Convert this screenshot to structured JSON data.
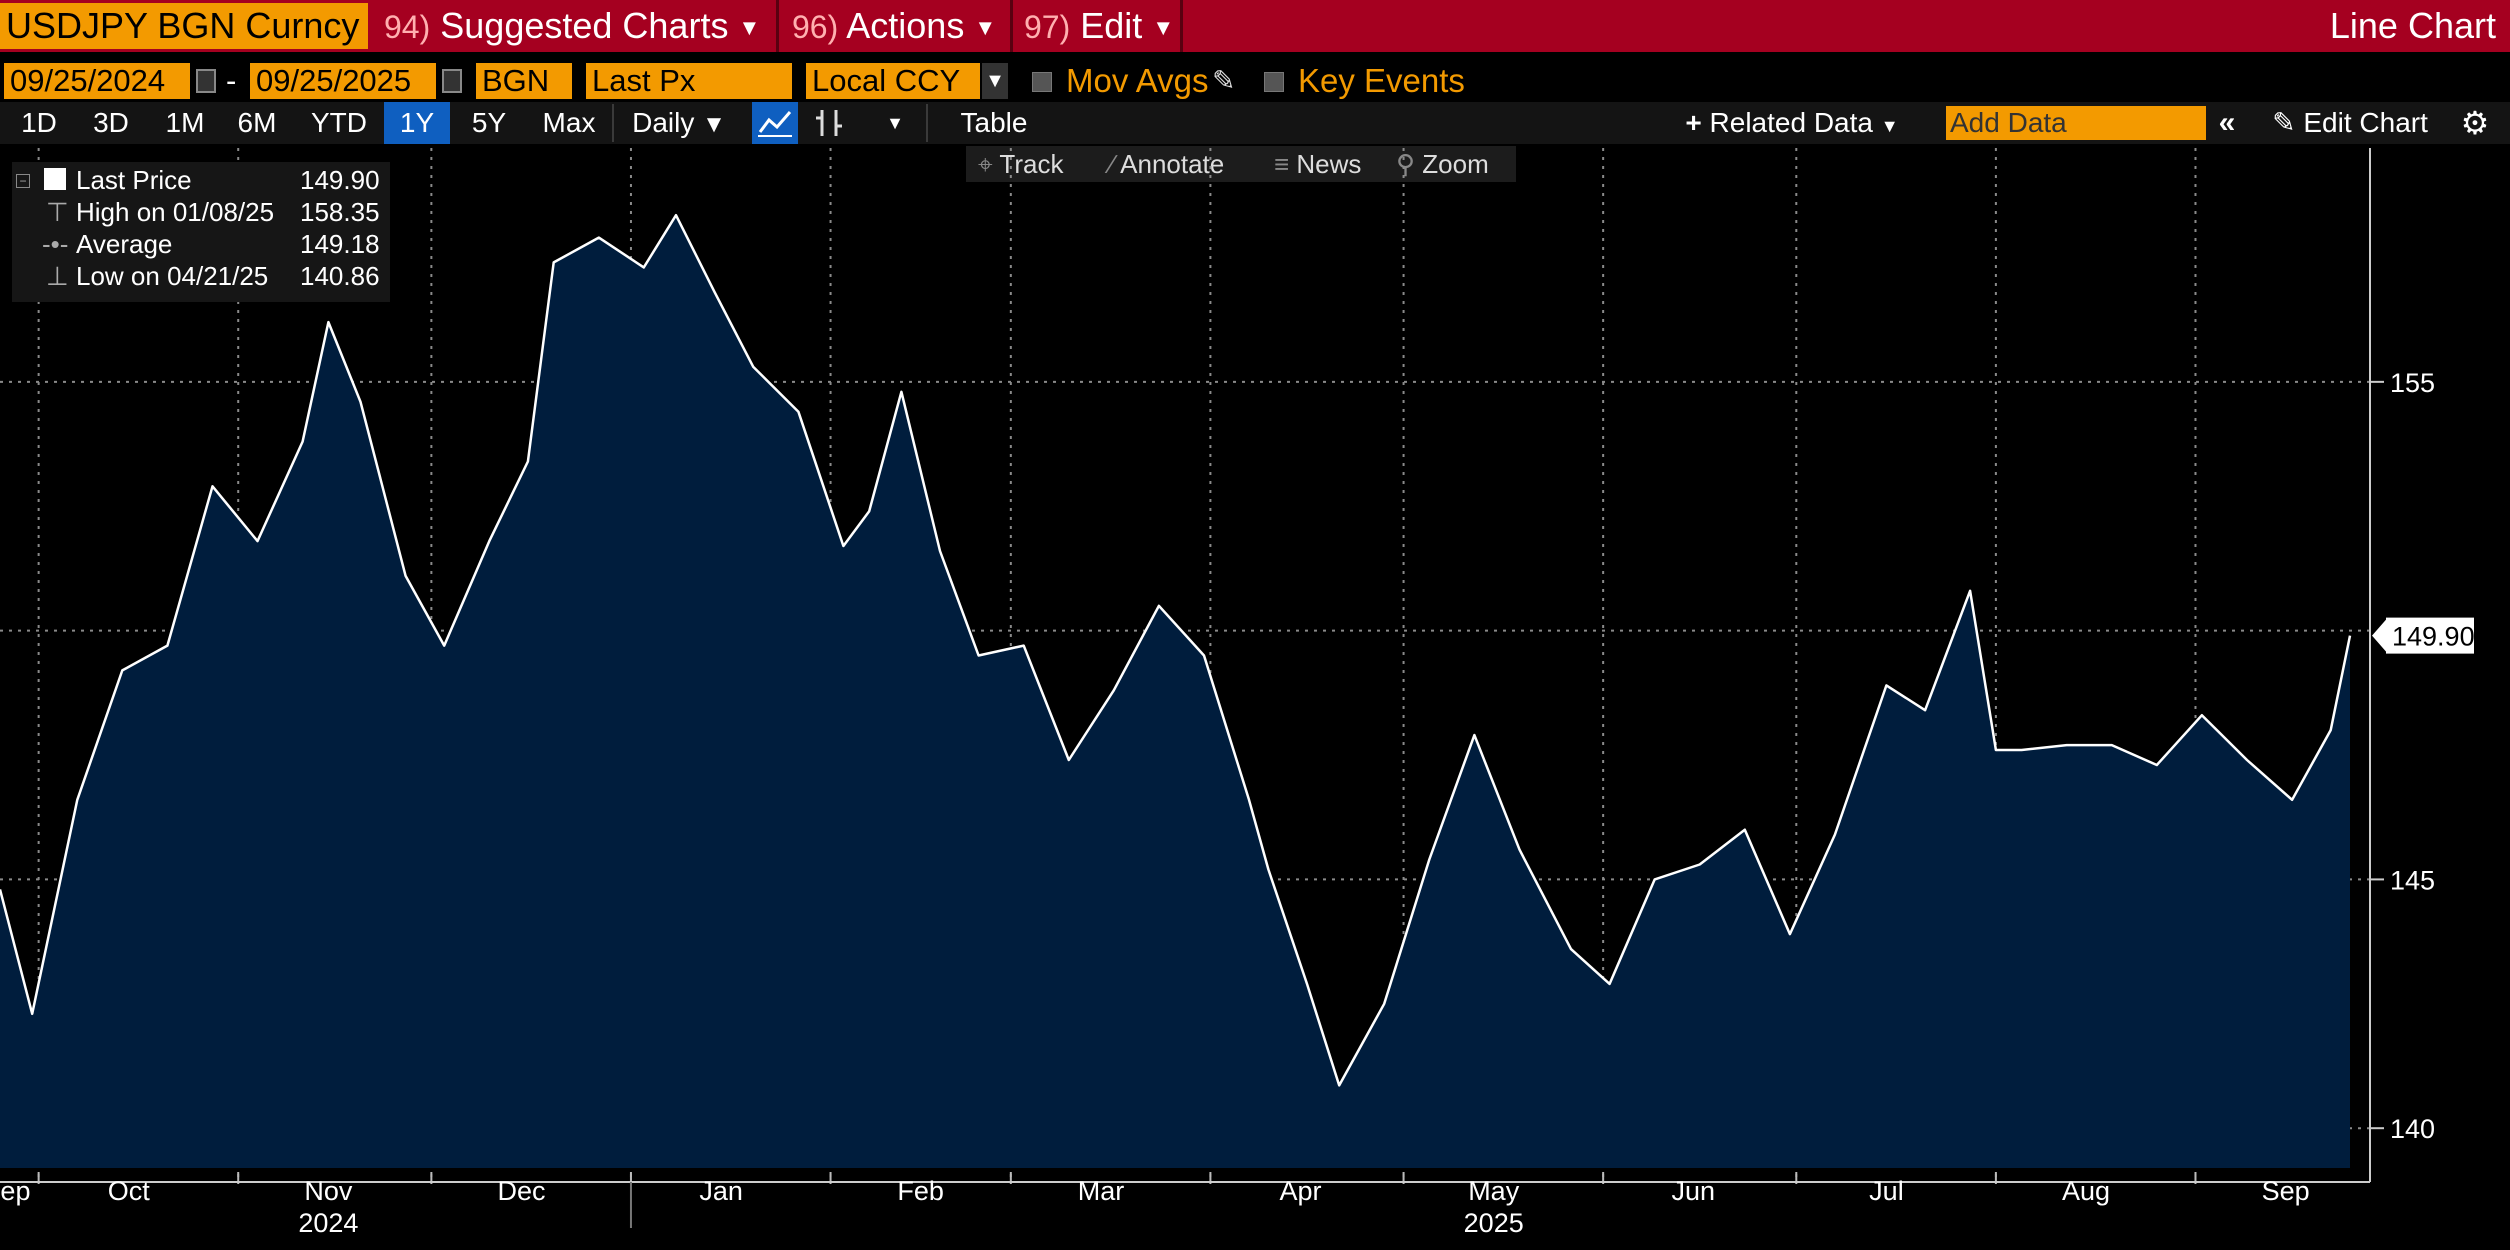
{
  "header": {
    "ticker": "USDJPY BGN Curncy",
    "menus": [
      {
        "num": "94)",
        "label": "Suggested Charts"
      },
      {
        "num": "96)",
        "label": "Actions"
      },
      {
        "num": "97)",
        "label": "Edit"
      }
    ],
    "chart_type": "Line Chart"
  },
  "params": {
    "start_date": "09/25/2024",
    "end_date": "09/25/2025",
    "date_sep": "-",
    "source": "BGN",
    "field": "Last Px",
    "currency": "Local CCY",
    "mov_avgs": "Mov Avgs",
    "key_events": "Key Events"
  },
  "toolbar": {
    "ranges": [
      "1D",
      "3D",
      "1M",
      "6M",
      "YTD",
      "1Y",
      "5Y",
      "Max"
    ],
    "selected_range": "1Y",
    "frequency": "Daily",
    "table": "Table",
    "related_data": "Related Data",
    "add_data_placeholder": "Add Data",
    "edit_chart": "Edit Chart"
  },
  "subtools": {
    "track": "Track",
    "annotate": "Annotate",
    "news": "News",
    "zoom": "Zoom"
  },
  "legend": {
    "rows": [
      {
        "label": "Last Price",
        "value": "149.90"
      },
      {
        "label": "High on 01/08/25",
        "value": "158.35"
      },
      {
        "label": "Average",
        "value": "149.18"
      },
      {
        "label": "Low on 04/21/25",
        "value": "140.86"
      }
    ]
  },
  "colors": {
    "command_bar": "#a50020",
    "field_orange": "#f39a00",
    "area_fill": "#001d3d",
    "line": "#ffffff",
    "grid": "#8a8a8a"
  },
  "chart_data": {
    "type": "area",
    "title": "",
    "xlabel": "",
    "ylabel": "",
    "ylim": [
      139.2,
      159.7
    ],
    "y_ticks": [
      140,
      145,
      150,
      155
    ],
    "y_tick_labels": [
      "140",
      "145",
      "155"
    ],
    "last_value_label": "149.90",
    "x_month_labels": [
      "Sep",
      "Oct",
      "Nov",
      "Dec",
      "Jan",
      "Feb",
      "Mar",
      "Apr",
      "May",
      "Jun",
      "Jul",
      "Aug",
      "Sep"
    ],
    "x_month_dates": [
      "2024-09-26",
      "2024-10-15",
      "2024-11-15",
      "2024-12-15",
      "2025-01-15",
      "2025-02-15",
      "2025-03-15",
      "2025-04-15",
      "2025-05-15",
      "2025-06-15",
      "2025-07-15",
      "2025-08-15",
      "2025-09-15"
    ],
    "x_year_labels": [
      "2024",
      "2025"
    ],
    "x_year_dates": [
      "2024-11-15",
      "2025-05-15"
    ],
    "year_boundary": "2025-01-01",
    "grid": true,
    "x_dates": [
      "2024-09-25",
      "2024-09-30",
      "2024-10-07",
      "2024-10-14",
      "2024-10-21",
      "2024-10-28",
      "2024-11-04",
      "2024-11-11",
      "2024-11-15",
      "2024-11-20",
      "2024-11-27",
      "2024-12-03",
      "2024-12-10",
      "2024-12-16",
      "2024-12-20",
      "2024-12-27",
      "2025-01-03",
      "2025-01-08",
      "2025-01-14",
      "2025-01-20",
      "2025-01-27",
      "2025-02-03",
      "2025-02-07",
      "2025-02-12",
      "2025-02-18",
      "2025-02-24",
      "2025-03-03",
      "2025-03-10",
      "2025-03-17",
      "2025-03-24",
      "2025-03-31",
      "2025-04-07",
      "2025-04-10",
      "2025-04-16",
      "2025-04-21",
      "2025-04-28",
      "2025-05-05",
      "2025-05-12",
      "2025-05-19",
      "2025-05-27",
      "2025-06-02",
      "2025-06-09",
      "2025-06-16",
      "2025-06-23",
      "2025-06-30",
      "2025-07-07",
      "2025-07-15",
      "2025-07-21",
      "2025-07-28",
      "2025-08-01",
      "2025-08-05",
      "2025-08-12",
      "2025-08-19",
      "2025-08-26",
      "2025-09-02",
      "2025-09-09",
      "2025-09-16",
      "2025-09-22",
      "2025-09-25"
    ],
    "series": [
      {
        "values": [
          144.8,
          142.3,
          146.6,
          149.2,
          149.7,
          152.9,
          151.8,
          153.8,
          156.2,
          154.6,
          151.1,
          149.7,
          151.8,
          153.4,
          157.4,
          157.9,
          157.3,
          158.35,
          156.8,
          155.3,
          154.4,
          151.7,
          152.4,
          154.8,
          151.6,
          149.5,
          149.7,
          147.4,
          148.8,
          150.5,
          149.5,
          146.6,
          145.2,
          142.9,
          140.86,
          142.5,
          145.4,
          147.9,
          145.6,
          143.6,
          142.9,
          145.0,
          145.3,
          146.0,
          143.9,
          145.9,
          148.9,
          148.4,
          150.8,
          147.6,
          147.6,
          147.7,
          147.7,
          147.3,
          148.3,
          147.4,
          146.6,
          148.0,
          149.9
        ]
      }
    ]
  }
}
